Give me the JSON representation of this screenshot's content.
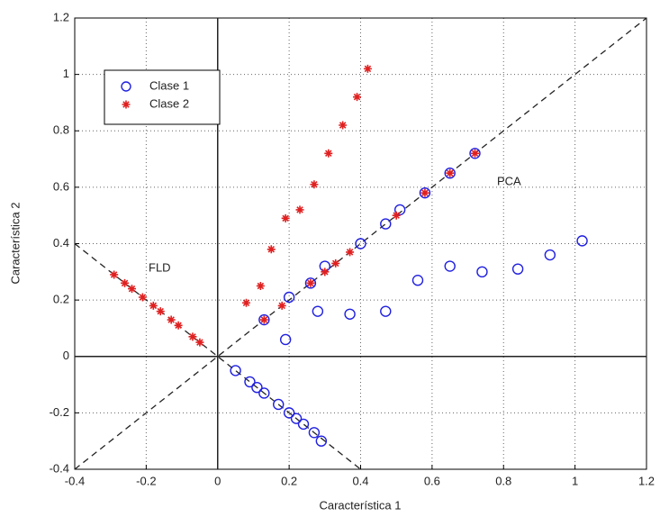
{
  "chart_data": {
    "type": "scatter",
    "x_label": "Característica 1",
    "y_label": "Característica 2",
    "xlim": [
      -0.4,
      1.2
    ],
    "ylim": [
      -0.4,
      1.2
    ],
    "xticks": [
      -0.4,
      -0.2,
      0,
      0.2,
      0.4,
      0.6,
      0.8,
      1,
      1.2
    ],
    "yticks": [
      -0.4,
      -0.2,
      0,
      0.2,
      0.4,
      0.6,
      0.8,
      1,
      1.2
    ],
    "grid": true,
    "legend": "upper left",
    "series": [
      {
        "name": "Clase 1",
        "color": "#2020e0",
        "marker": "circle",
        "x": [
          0.19,
          0.28,
          0.37,
          0.47,
          0.56,
          0.65,
          0.74,
          0.84,
          0.93,
          1.02,
          0.13,
          0.2,
          0.26,
          0.3,
          0.4,
          0.47,
          0.51,
          0.58,
          0.65,
          0.72,
          0.05,
          0.09,
          0.11,
          0.13,
          0.17,
          0.2,
          0.22,
          0.24,
          0.27,
          0.29
        ],
        "values": [
          0.06,
          0.16,
          0.15,
          0.16,
          0.27,
          0.32,
          0.3,
          0.31,
          0.36,
          0.41,
          0.13,
          0.21,
          0.26,
          0.32,
          0.4,
          0.47,
          0.52,
          0.58,
          0.65,
          0.72,
          -0.05,
          -0.09,
          -0.11,
          -0.13,
          -0.17,
          -0.2,
          -0.22,
          -0.24,
          -0.27,
          -0.3
        ]
      },
      {
        "name": "Clase 2",
        "color": "#e02020",
        "marker": "star",
        "x": [
          0.08,
          0.12,
          0.15,
          0.19,
          0.23,
          0.27,
          0.31,
          0.35,
          0.39,
          0.42,
          0.13,
          0.18,
          0.26,
          0.3,
          0.33,
          0.37,
          0.5,
          0.58,
          0.65,
          0.72,
          -0.29,
          -0.26,
          -0.24,
          -0.21,
          -0.18,
          -0.16,
          -0.13,
          -0.11,
          -0.07,
          -0.05
        ],
        "values": [
          0.19,
          0.25,
          0.38,
          0.49,
          0.52,
          0.61,
          0.72,
          0.82,
          0.92,
          1.02,
          0.13,
          0.18,
          0.26,
          0.3,
          0.33,
          0.37,
          0.5,
          0.58,
          0.65,
          0.72,
          0.29,
          0.26,
          0.24,
          0.21,
          0.18,
          0.16,
          0.13,
          0.11,
          0.07,
          0.05
        ]
      }
    ],
    "reference_lines": [
      {
        "name": "PCA",
        "x": [
          -0.4,
          1.2
        ],
        "y": [
          -0.4,
          1.2
        ]
      },
      {
        "name": "FLD",
        "x": [
          -0.4,
          0.4
        ],
        "y": [
          0.4,
          -0.4
        ]
      }
    ]
  }
}
